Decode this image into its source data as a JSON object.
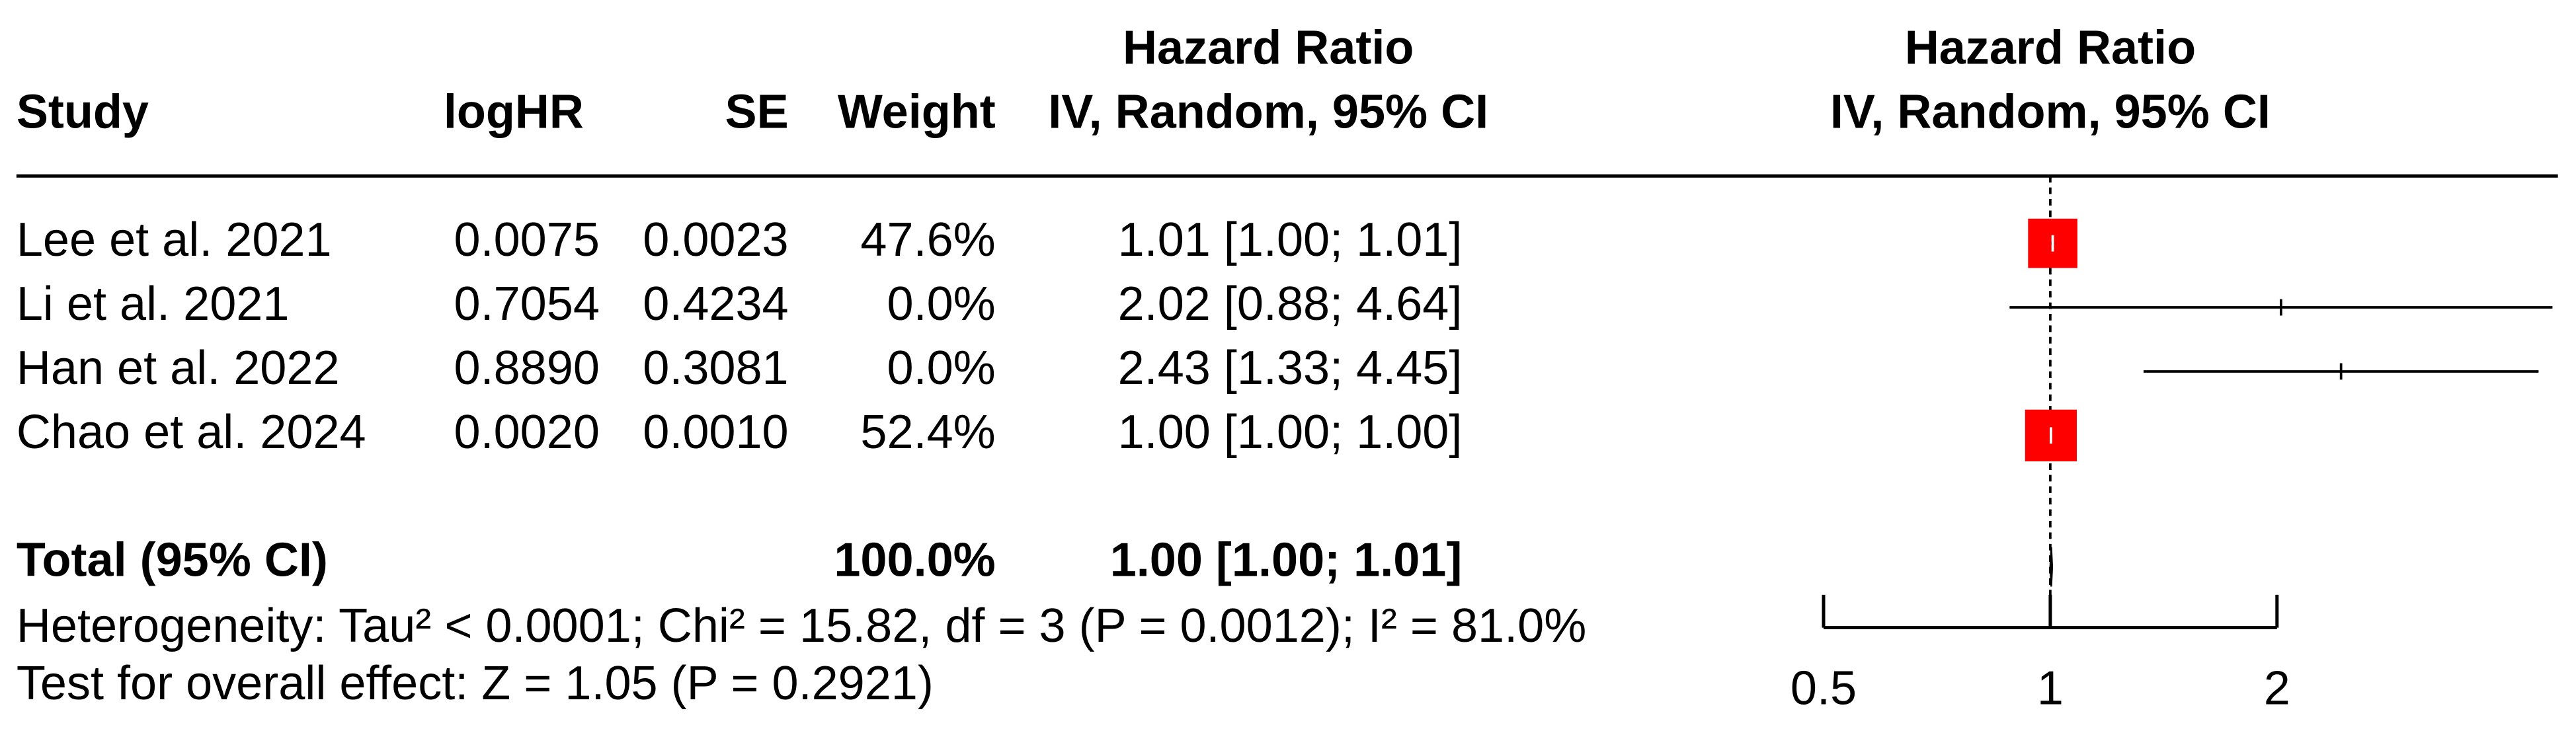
{
  "chart_data": {
    "type": "forest",
    "headers": {
      "study": "Study",
      "logHR": "logHR",
      "se": "SE",
      "weight": "Weight",
      "hr_line1": "Hazard Ratio",
      "hr_line2": "IV, Random, 95% CI",
      "plot_line1": "Hazard Ratio",
      "plot_line2": "IV, Random, 95% CI"
    },
    "studies": [
      "Lee et al. 2021",
      "Li et al. 2021",
      "Han et al. 2022",
      "Chao et al. 2024"
    ],
    "logHR": [
      "0.0075",
      "0.7054",
      "0.8890",
      "0.0020"
    ],
    "se": [
      "0.0023",
      "0.4234",
      "0.3081",
      "0.0010"
    ],
    "weight": {
      "values": [
        47.6,
        0.0,
        0.0,
        52.4
      ],
      "value_labels": [
        "47.6%",
        "0.0%",
        "0.0%",
        "52.4%"
      ]
    },
    "hr": {
      "values": [
        1.0075,
        2.0246,
        2.4326,
        1.002
      ],
      "lower": [
        1.003,
        0.883,
        1.33,
        1.0
      ],
      "upper": [
        1.012,
        4.643,
        4.45,
        1.004
      ],
      "value_labels": [
        "1.01 [1.00; 1.01]",
        "2.02 [0.88; 4.64]",
        "2.43 [1.33; 4.45]",
        "1.00 [1.00; 1.00]"
      ]
    },
    "total": {
      "label": "Total (95% CI)",
      "weight": 100.0,
      "weight_label": "100.0%",
      "hr": 1.003,
      "lower": 1.0,
      "upper": 1.006,
      "hr_label": "1.00 [1.00; 1.01]"
    },
    "heterogeneity": "Heterogeneity: Tau² < 0.0001; Chi² = 15.82, df = 3 (P = 0.0012); I² = 81.0%",
    "overall_effect": "Test for overall effect: Z = 1.05 (P = 0.2921)",
    "xlim": [
      0.5,
      2
    ],
    "xticks": [
      0.5,
      1,
      2
    ],
    "log_scale": true,
    "reference_line": 1,
    "color": "#ff0000"
  }
}
